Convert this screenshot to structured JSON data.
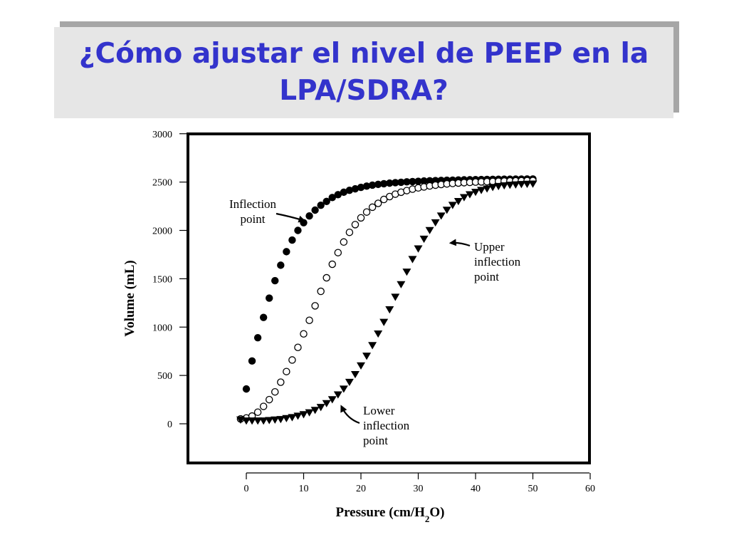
{
  "slide": {
    "title_line1": "¿Cómo ajustar el nivel de PEEP en la",
    "title_line2": "LPA/SDRA?",
    "title_color": "#3333cc",
    "title_bg": "#e6e6e6",
    "title_shadow": "#a6a6a6"
  },
  "chart_data": {
    "type": "scatter",
    "xlabel": "Pressure (cm/H2O)",
    "ylabel": "Volume (mL)",
    "xlim": [
      0,
      60
    ],
    "ylim": [
      0,
      3000
    ],
    "xticks": [
      0,
      10,
      20,
      30,
      40,
      50,
      60
    ],
    "yticks": [
      0,
      500,
      1000,
      1500,
      2000,
      2500,
      3000
    ],
    "grid": false,
    "series": [
      {
        "marker": "filled-circle",
        "x": [
          -1,
          0,
          1,
          2,
          3,
          4,
          5,
          6,
          7,
          8,
          9,
          10,
          11,
          12,
          13,
          14,
          15,
          16,
          17,
          18,
          19,
          20,
          21,
          22,
          23,
          24,
          25,
          26,
          27,
          28,
          29,
          30,
          31,
          32,
          33,
          34,
          35,
          36,
          37,
          38,
          39,
          40,
          41,
          42,
          43,
          44,
          45,
          46,
          47,
          48,
          49,
          50
        ],
        "y": [
          50,
          360,
          650,
          890,
          1100,
          1300,
          1480,
          1640,
          1780,
          1900,
          2000,
          2080,
          2150,
          2210,
          2260,
          2300,
          2340,
          2370,
          2395,
          2415,
          2430,
          2445,
          2458,
          2468,
          2476,
          2483,
          2489,
          2494,
          2498,
          2502,
          2505,
          2508,
          2511,
          2513,
          2515,
          2517,
          2519,
          2520,
          2522,
          2523,
          2524,
          2525,
          2526,
          2527,
          2528,
          2529,
          2530,
          2530,
          2531,
          2531,
          2532,
          2532
        ]
      },
      {
        "marker": "open-circle",
        "x": [
          -1,
          0,
          1,
          2,
          3,
          4,
          5,
          6,
          7,
          8,
          9,
          10,
          11,
          12,
          13,
          14,
          15,
          16,
          17,
          18,
          19,
          20,
          21,
          22,
          23,
          24,
          25,
          26,
          27,
          28,
          29,
          30,
          31,
          32,
          33,
          34,
          35,
          36,
          37,
          38,
          39,
          40,
          41,
          42,
          43,
          44,
          45,
          46,
          47,
          48,
          49,
          50
        ],
        "y": [
          50,
          60,
          80,
          120,
          180,
          250,
          330,
          430,
          540,
          660,
          790,
          930,
          1070,
          1220,
          1370,
          1510,
          1650,
          1770,
          1880,
          1980,
          2060,
          2130,
          2190,
          2240,
          2280,
          2320,
          2350,
          2375,
          2395,
          2412,
          2427,
          2440,
          2450,
          2460,
          2468,
          2475,
          2481,
          2486,
          2490,
          2494,
          2497,
          2500,
          2502,
          2504,
          2506,
          2508,
          2510,
          2511,
          2512,
          2513,
          2514,
          2515
        ]
      },
      {
        "marker": "filled-triangle-down",
        "x": [
          -1,
          0,
          1,
          2,
          3,
          4,
          5,
          6,
          7,
          8,
          9,
          10,
          11,
          12,
          13,
          14,
          15,
          16,
          17,
          18,
          19,
          20,
          21,
          22,
          23,
          24,
          25,
          26,
          27,
          28,
          29,
          30,
          31,
          32,
          33,
          34,
          35,
          36,
          37,
          38,
          39,
          40,
          41,
          42,
          43,
          44,
          45,
          46,
          47,
          48,
          49,
          50
        ],
        "y": [
          40,
          30,
          30,
          30,
          30,
          35,
          40,
          45,
          55,
          65,
          80,
          95,
          115,
          140,
          170,
          210,
          250,
          300,
          360,
          430,
          510,
          600,
          700,
          810,
          930,
          1050,
          1180,
          1310,
          1440,
          1570,
          1700,
          1810,
          1910,
          2000,
          2080,
          2150,
          2210,
          2260,
          2300,
          2340,
          2370,
          2395,
          2415,
          2430,
          2445,
          2455,
          2462,
          2468,
          2472,
          2476,
          2478,
          2480
        ]
      }
    ],
    "annotations": [
      {
        "lines": [
          "Inflection",
          "point"
        ],
        "arrow_to": [
          11,
          2080
        ]
      },
      {
        "lines": [
          "Upper",
          "inflection",
          "point"
        ],
        "arrow_to": [
          35,
          1900
        ]
      },
      {
        "lines": [
          "Lower",
          "inflection",
          "point"
        ],
        "arrow_to": [
          16,
          220
        ]
      }
    ]
  }
}
